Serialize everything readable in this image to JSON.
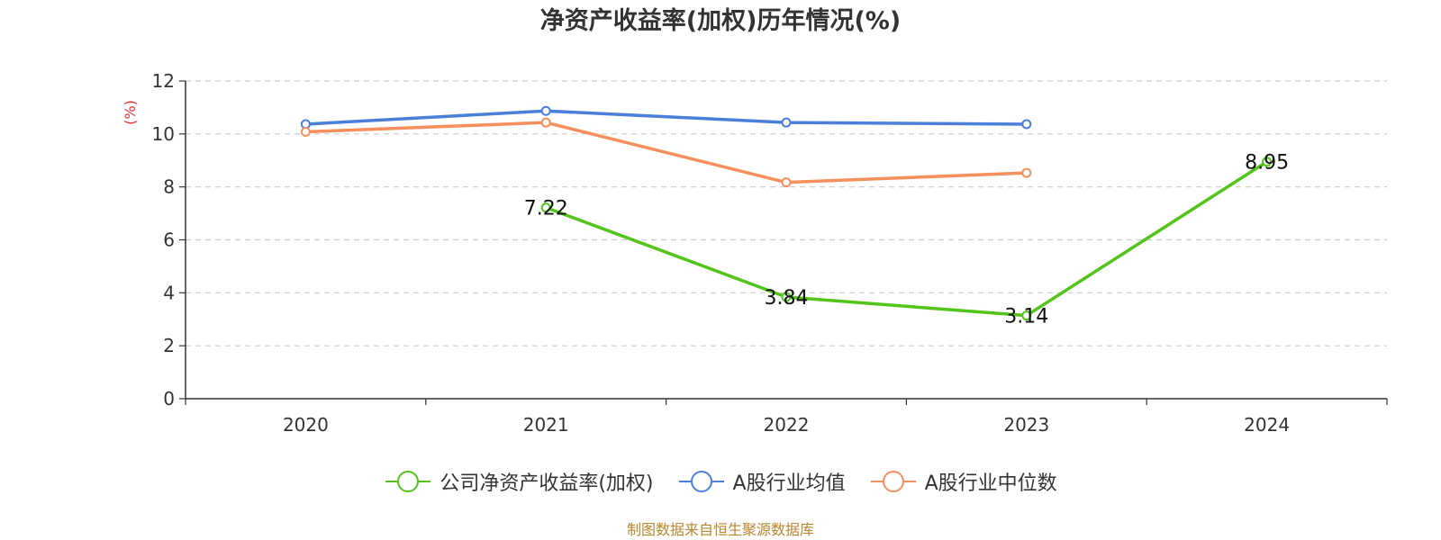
{
  "chart_data": {
    "type": "line",
    "title": "净资产收益率(加权)历年情况(%)",
    "ylabel": "(%)",
    "xlabel": "",
    "categories": [
      "2020",
      "2021",
      "2022",
      "2023",
      "2024"
    ],
    "yticks": [
      "0",
      "2",
      "4",
      "6",
      "8",
      "10",
      "12"
    ],
    "ylim": [
      0,
      12
    ],
    "grid": true,
    "legend_position": "bottom",
    "series": [
      {
        "name": "公司净资产收益率(加权)",
        "color": "#52c41a",
        "values": [
          null,
          7.22,
          3.84,
          3.14,
          8.95
        ],
        "labels": [
          "",
          "7.22",
          "3.84",
          "3.14",
          "8.95"
        ]
      },
      {
        "name": "A股行业均值",
        "color": "#4a7fdc",
        "values": [
          10.37,
          10.87,
          10.43,
          10.37,
          null
        ],
        "labels": []
      },
      {
        "name": "A股行业中位数",
        "color": "#f78f5c",
        "values": [
          10.08,
          10.43,
          8.17,
          8.53,
          null
        ],
        "labels": []
      }
    ]
  },
  "source_text": "制图数据来自恒生聚源数据库",
  "colors": {
    "ylabel": "#e8302e",
    "source": "#b8862e",
    "axis": "#333333",
    "grid": "#cccccc"
  }
}
